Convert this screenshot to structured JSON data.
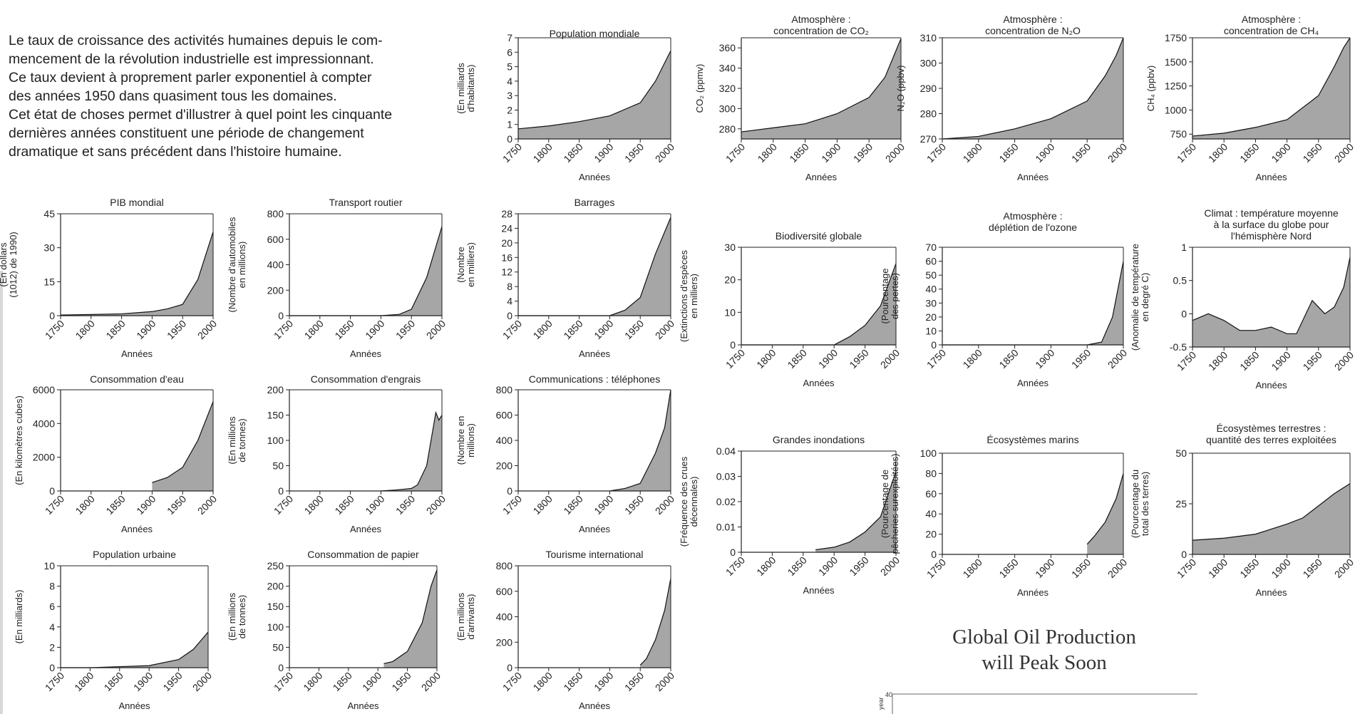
{
  "intro": {
    "lines": [
      "Le taux de croissance des activités humaines depuis le com-",
      "mencement de la révolution industrielle est impressionnant.",
      "Ce taux devient à proprement parler exponentiel à compter",
      "des années 1950 dans quasiment tous les domaines.",
      "Cet état de choses permet d'illustrer à quel point les cinquante",
      "dernières années constituent une période de changement",
      "dramatique et sans précédent dans l'histoire humaine."
    ]
  },
  "oil_title": [
    "Global Oil Production",
    "will Peak Soon"
  ],
  "oil_axis": {
    "ylabel": "year",
    "tick": "40"
  },
  "colors": {
    "fill": "#a6a6a6",
    "line": "#111111",
    "axis": "#222222"
  },
  "chart_data": [
    {
      "type": "area",
      "title": [
        "Population mondiale"
      ],
      "ylabel": [
        "(En milliards",
        "d'habitants)"
      ],
      "xlabel": "Années",
      "x": [
        1750,
        1800,
        1850,
        1900,
        1950,
        1975,
        2000
      ],
      "y": [
        0.7,
        0.9,
        1.2,
        1.6,
        2.5,
        4.0,
        6.1
      ],
      "ylim": [
        0,
        7
      ],
      "yticks": [
        0,
        1,
        2,
        3,
        4,
        5,
        6,
        7
      ],
      "xticks": [
        1750,
        1800,
        1850,
        1900,
        1950,
        2000
      ]
    },
    {
      "type": "area",
      "title": [
        "Atmosphère :",
        "concentration de CO₂"
      ],
      "ylabel": [
        "CO₂ (ppmv)"
      ],
      "xlabel": "Années",
      "x": [
        1750,
        1800,
        1850,
        1900,
        1950,
        1975,
        1990,
        2000
      ],
      "y": [
        277,
        281,
        285,
        295,
        311,
        331,
        354,
        369
      ],
      "ylim": [
        270,
        370
      ],
      "yticks": [
        280,
        300,
        320,
        340,
        360
      ],
      "xticks": [
        1750,
        1800,
        1850,
        1900,
        1950,
        2000
      ]
    },
    {
      "type": "area",
      "title": [
        "Atmosphère :",
        "concentration de N₂O"
      ],
      "ylabel": [
        "N₂O (ppbv)"
      ],
      "xlabel": "Années",
      "x": [
        1750,
        1800,
        1850,
        1900,
        1950,
        1975,
        1990,
        2000
      ],
      "y": [
        270,
        271,
        274,
        278,
        285,
        295,
        303,
        310
      ],
      "ylim": [
        270,
        310
      ],
      "yticks": [
        270,
        280,
        290,
        300,
        310
      ],
      "xticks": [
        1750,
        1800,
        1850,
        1900,
        1950,
        2000
      ]
    },
    {
      "type": "area",
      "title": [
        "Atmosphère :",
        "concentration de CH₄"
      ],
      "ylabel": [
        "CH₄ (ppbv)"
      ],
      "xlabel": "Années",
      "x": [
        1750,
        1800,
        1850,
        1900,
        1950,
        1975,
        1990,
        2000
      ],
      "y": [
        730,
        760,
        820,
        900,
        1150,
        1450,
        1650,
        1750
      ],
      "ylim": [
        700,
        1750
      ],
      "yticks": [
        750,
        1000,
        1250,
        1500,
        1750
      ],
      "xticks": [
        1750,
        1800,
        1850,
        1900,
        1950,
        2000
      ]
    },
    {
      "type": "area",
      "title": [
        "PIB mondial"
      ],
      "ylabel": [
        "(En dollars",
        "(1012) de 1990)"
      ],
      "xlabel": "Années",
      "x": [
        1750,
        1800,
        1850,
        1900,
        1925,
        1950,
        1975,
        2000
      ],
      "y": [
        0.3,
        0.5,
        0.8,
        1.8,
        3,
        5,
        16,
        37
      ],
      "ylim": [
        0,
        45
      ],
      "yticks": [
        0,
        15,
        30,
        45
      ],
      "xticks": [
        1750,
        1800,
        1850,
        1900,
        1950,
        2000
      ]
    },
    {
      "type": "area",
      "title": [
        "Transport routier"
      ],
      "ylabel": [
        "(Nombre d'automobiles",
        "en millions)"
      ],
      "xlabel": "Années",
      "x": [
        1750,
        1900,
        1930,
        1950,
        1975,
        2000
      ],
      "y": [
        0,
        0,
        10,
        50,
        300,
        700
      ],
      "ylim": [
        0,
        800
      ],
      "yticks": [
        0,
        200,
        400,
        600,
        800
      ],
      "xticks": [
        1750,
        1800,
        1850,
        1900,
        1950,
        2000
      ]
    },
    {
      "type": "area",
      "title": [
        "Barrages"
      ],
      "ylabel": [
        "(Nombre",
        "en milliers)"
      ],
      "xlabel": "Années",
      "x": [
        1750,
        1900,
        1925,
        1950,
        1975,
        2000
      ],
      "y": [
        0,
        0,
        1.5,
        5,
        17,
        27
      ],
      "ylim": [
        0,
        28
      ],
      "yticks": [
        0,
        4,
        8,
        12,
        16,
        20,
        24,
        28
      ],
      "xticks": [
        1750,
        1800,
        1850,
        1900,
        1950,
        2000
      ]
    },
    {
      "type": "area",
      "title": [
        "Biodiversité globale"
      ],
      "ylabel": [
        "(Extinctions d'espèces",
        "en milliers)"
      ],
      "xlabel": "Années",
      "x": [
        1750,
        1900,
        1925,
        1950,
        1975,
        2000
      ],
      "y": [
        0,
        0,
        2.5,
        6,
        12,
        25
      ],
      "ylim": [
        0,
        30
      ],
      "yticks": [
        0,
        10,
        20,
        30
      ],
      "xticks": [
        1750,
        1800,
        1850,
        1900,
        1950,
        2000
      ]
    },
    {
      "type": "area",
      "title": [
        "Atmosphère :",
        "déplétion de l'ozone"
      ],
      "ylabel": [
        "(Pourcentage",
        "des pertes)"
      ],
      "xlabel": "Années",
      "x": [
        1750,
        1950,
        1970,
        1985,
        2000
      ],
      "y": [
        0,
        0,
        2,
        20,
        60
      ],
      "ylim": [
        0,
        70
      ],
      "yticks": [
        0,
        10,
        20,
        30,
        40,
        50,
        60,
        70
      ],
      "xticks": [
        1750,
        1800,
        1850,
        1900,
        1950,
        2000
      ]
    },
    {
      "type": "area",
      "title": [
        "Climat : température moyenne",
        "à la surface du globe pour",
        "l'hémisphère Nord"
      ],
      "ylabel": [
        "(Anomalie de température",
        "en degré C)"
      ],
      "xlabel": "Années",
      "x": [
        1750,
        1775,
        1800,
        1825,
        1850,
        1875,
        1900,
        1915,
        1940,
        1960,
        1975,
        1990,
        2000
      ],
      "y": [
        -0.1,
        0,
        -0.1,
        -0.25,
        -0.25,
        -0.2,
        -0.3,
        -0.3,
        0.2,
        0.0,
        0.1,
        0.4,
        0.85
      ],
      "ylim": [
        -0.5,
        1.0
      ],
      "yticks": [
        -0.5,
        0,
        0.5,
        1.0
      ],
      "xticks": [
        1750,
        1800,
        1850,
        1900,
        1950,
        2000
      ]
    },
    {
      "type": "area",
      "title": [
        "Consommation d'eau"
      ],
      "ylabel": [
        "(En kilomètres cubes)"
      ],
      "xlabel": "Années",
      "x": [
        1900,
        1925,
        1950,
        1975,
        2000
      ],
      "y": [
        500,
        800,
        1400,
        3000,
        5300
      ],
      "ylim": [
        0,
        6000
      ],
      "yticks": [
        0,
        2000,
        4000,
        6000
      ],
      "xticks": [
        1750,
        1800,
        1850,
        1900,
        1950,
        2000
      ]
    },
    {
      "type": "area",
      "title": [
        "Consommation d'engrais"
      ],
      "ylabel": [
        "(En millions",
        "de tonnes)"
      ],
      "xlabel": "Années",
      "x": [
        1900,
        1925,
        1950,
        1960,
        1975,
        1990,
        1995,
        2000
      ],
      "y": [
        0,
        2,
        5,
        12,
        50,
        155,
        140,
        150
      ],
      "ylim": [
        0,
        200
      ],
      "yticks": [
        0,
        50,
        100,
        150,
        200
      ],
      "xticks": [
        1750,
        1800,
        1850,
        1900,
        1950,
        2000
      ]
    },
    {
      "type": "area",
      "title": [
        "Communications : téléphones"
      ],
      "ylabel": [
        "(Nombre en",
        "millions)"
      ],
      "xlabel": "Années",
      "x": [
        1900,
        1925,
        1950,
        1975,
        1990,
        2000
      ],
      "y": [
        0,
        20,
        60,
        300,
        500,
        800
      ],
      "ylim": [
        0,
        800
      ],
      "yticks": [
        0,
        200,
        400,
        600,
        800
      ],
      "xticks": [
        1750,
        1800,
        1850,
        1900,
        1950,
        2000
      ]
    },
    {
      "type": "area",
      "title": [
        "Grandes inondations"
      ],
      "ylabel": [
        "(Fréquence des crues",
        "décennales)"
      ],
      "xlabel": "Années",
      "x": [
        1870,
        1900,
        1925,
        1950,
        1975,
        2000
      ],
      "y": [
        0.001,
        0.002,
        0.004,
        0.008,
        0.014,
        0.032
      ],
      "ylim": [
        0,
        0.04
      ],
      "yticks": [
        0,
        0.01,
        0.02,
        0.03,
        0.04
      ],
      "xticks": [
        1750,
        1800,
        1850,
        1900,
        1950,
        2000
      ]
    },
    {
      "type": "area",
      "title": [
        "Écosystèmes marins"
      ],
      "ylabel": [
        "(Pourcentage de",
        "pêcheries surexploitées)"
      ],
      "xlabel": "Années",
      "x": [
        1950,
        1960,
        1975,
        1990,
        2000
      ],
      "y": [
        10,
        18,
        32,
        55,
        80
      ],
      "ylim": [
        0,
        100
      ],
      "yticks": [
        0,
        20,
        40,
        60,
        80,
        100
      ],
      "xticks": [
        1750,
        1800,
        1850,
        1900,
        1950,
        2000
      ]
    },
    {
      "type": "area",
      "title": [
        "Écosystèmes terrestres :",
        "quantité des terres exploitées"
      ],
      "ylabel": [
        "(Pourcentage du",
        "total des terres)"
      ],
      "xlabel": "Années",
      "x": [
        1750,
        1800,
        1850,
        1900,
        1925,
        1950,
        1975,
        2000
      ],
      "y": [
        7,
        8,
        10,
        15,
        18,
        24,
        30,
        35
      ],
      "ylim": [
        0,
        50
      ],
      "yticks": [
        0,
        25,
        50
      ],
      "xticks": [
        1750,
        1800,
        1850,
        1900,
        1950,
        2000
      ]
    },
    {
      "type": "area",
      "title": [
        "Population urbaine"
      ],
      "ylabel": [
        "(En milliards)"
      ],
      "xlabel": "Années",
      "x": [
        1750,
        1800,
        1850,
        1900,
        1950,
        1975,
        2000
      ],
      "y": [
        0,
        0,
        0.1,
        0.2,
        0.8,
        1.8,
        3.5
      ],
      "ylim": [
        0,
        10
      ],
      "yticks": [
        0,
        2,
        4,
        6,
        8,
        10
      ],
      "xticks": [
        1750,
        1800,
        1850,
        1900,
        1950,
        2000
      ]
    },
    {
      "type": "area",
      "title": [
        "Consommation de papier"
      ],
      "ylabel": [
        "(En millions",
        "de tonnes)"
      ],
      "xlabel": "Années",
      "x": [
        1910,
        1925,
        1950,
        1975,
        1990,
        2000
      ],
      "y": [
        10,
        15,
        40,
        110,
        200,
        240
      ],
      "ylim": [
        0,
        250
      ],
      "yticks": [
        0,
        50,
        100,
        150,
        200,
        250
      ],
      "xticks": [
        1750,
        1800,
        1850,
        1900,
        1950,
        2000
      ]
    },
    {
      "type": "area",
      "title": [
        "Tourisme international"
      ],
      "ylabel": [
        "(En millions",
        "d'arrivants)"
      ],
      "xlabel": "Années",
      "x": [
        1950,
        1960,
        1975,
        1990,
        2000
      ],
      "y": [
        20,
        70,
        220,
        450,
        700
      ],
      "ylim": [
        0,
        800
      ],
      "yticks": [
        0,
        200,
        400,
        600,
        800
      ],
      "xticks": [
        1750,
        1800,
        1850,
        1900,
        1950,
        2000
      ]
    }
  ]
}
